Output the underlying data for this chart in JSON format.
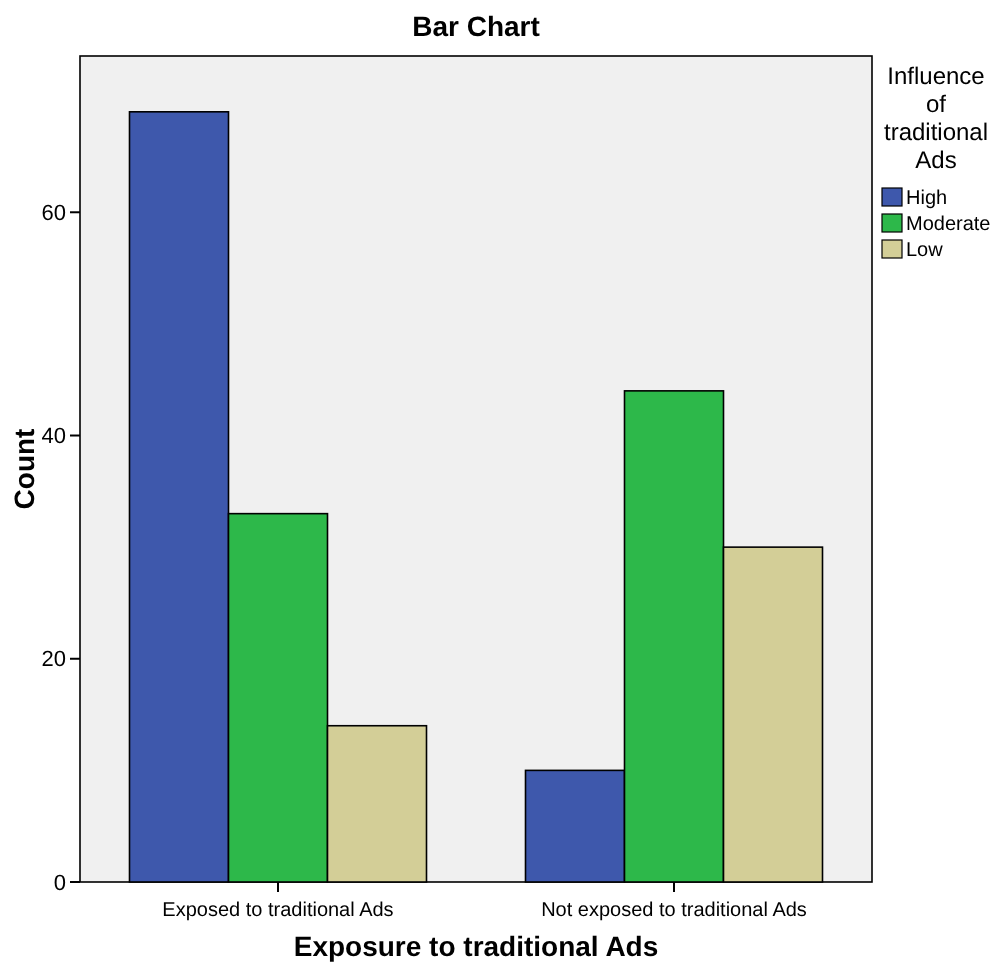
{
  "chart_data": {
    "type": "bar",
    "title": "Bar Chart",
    "xlabel": "Exposure to traditional Ads",
    "ylabel": "Count",
    "legend_title": "Influence of traditional Ads",
    "categories": [
      "Exposed to traditional Ads",
      "Not exposed to traditional Ads"
    ],
    "series": [
      {
        "name": "High",
        "color": "#3e58ac",
        "values": [
          69,
          10
        ]
      },
      {
        "name": "Moderate",
        "color": "#2db84a",
        "values": [
          33,
          44
        ]
      },
      {
        "name": "Low",
        "color": "#d3ce97",
        "values": [
          14,
          30
        ]
      }
    ],
    "ylim": [
      0,
      74
    ],
    "yticks": [
      0,
      20,
      40,
      60
    ],
    "grid": false,
    "legend": "top right"
  }
}
